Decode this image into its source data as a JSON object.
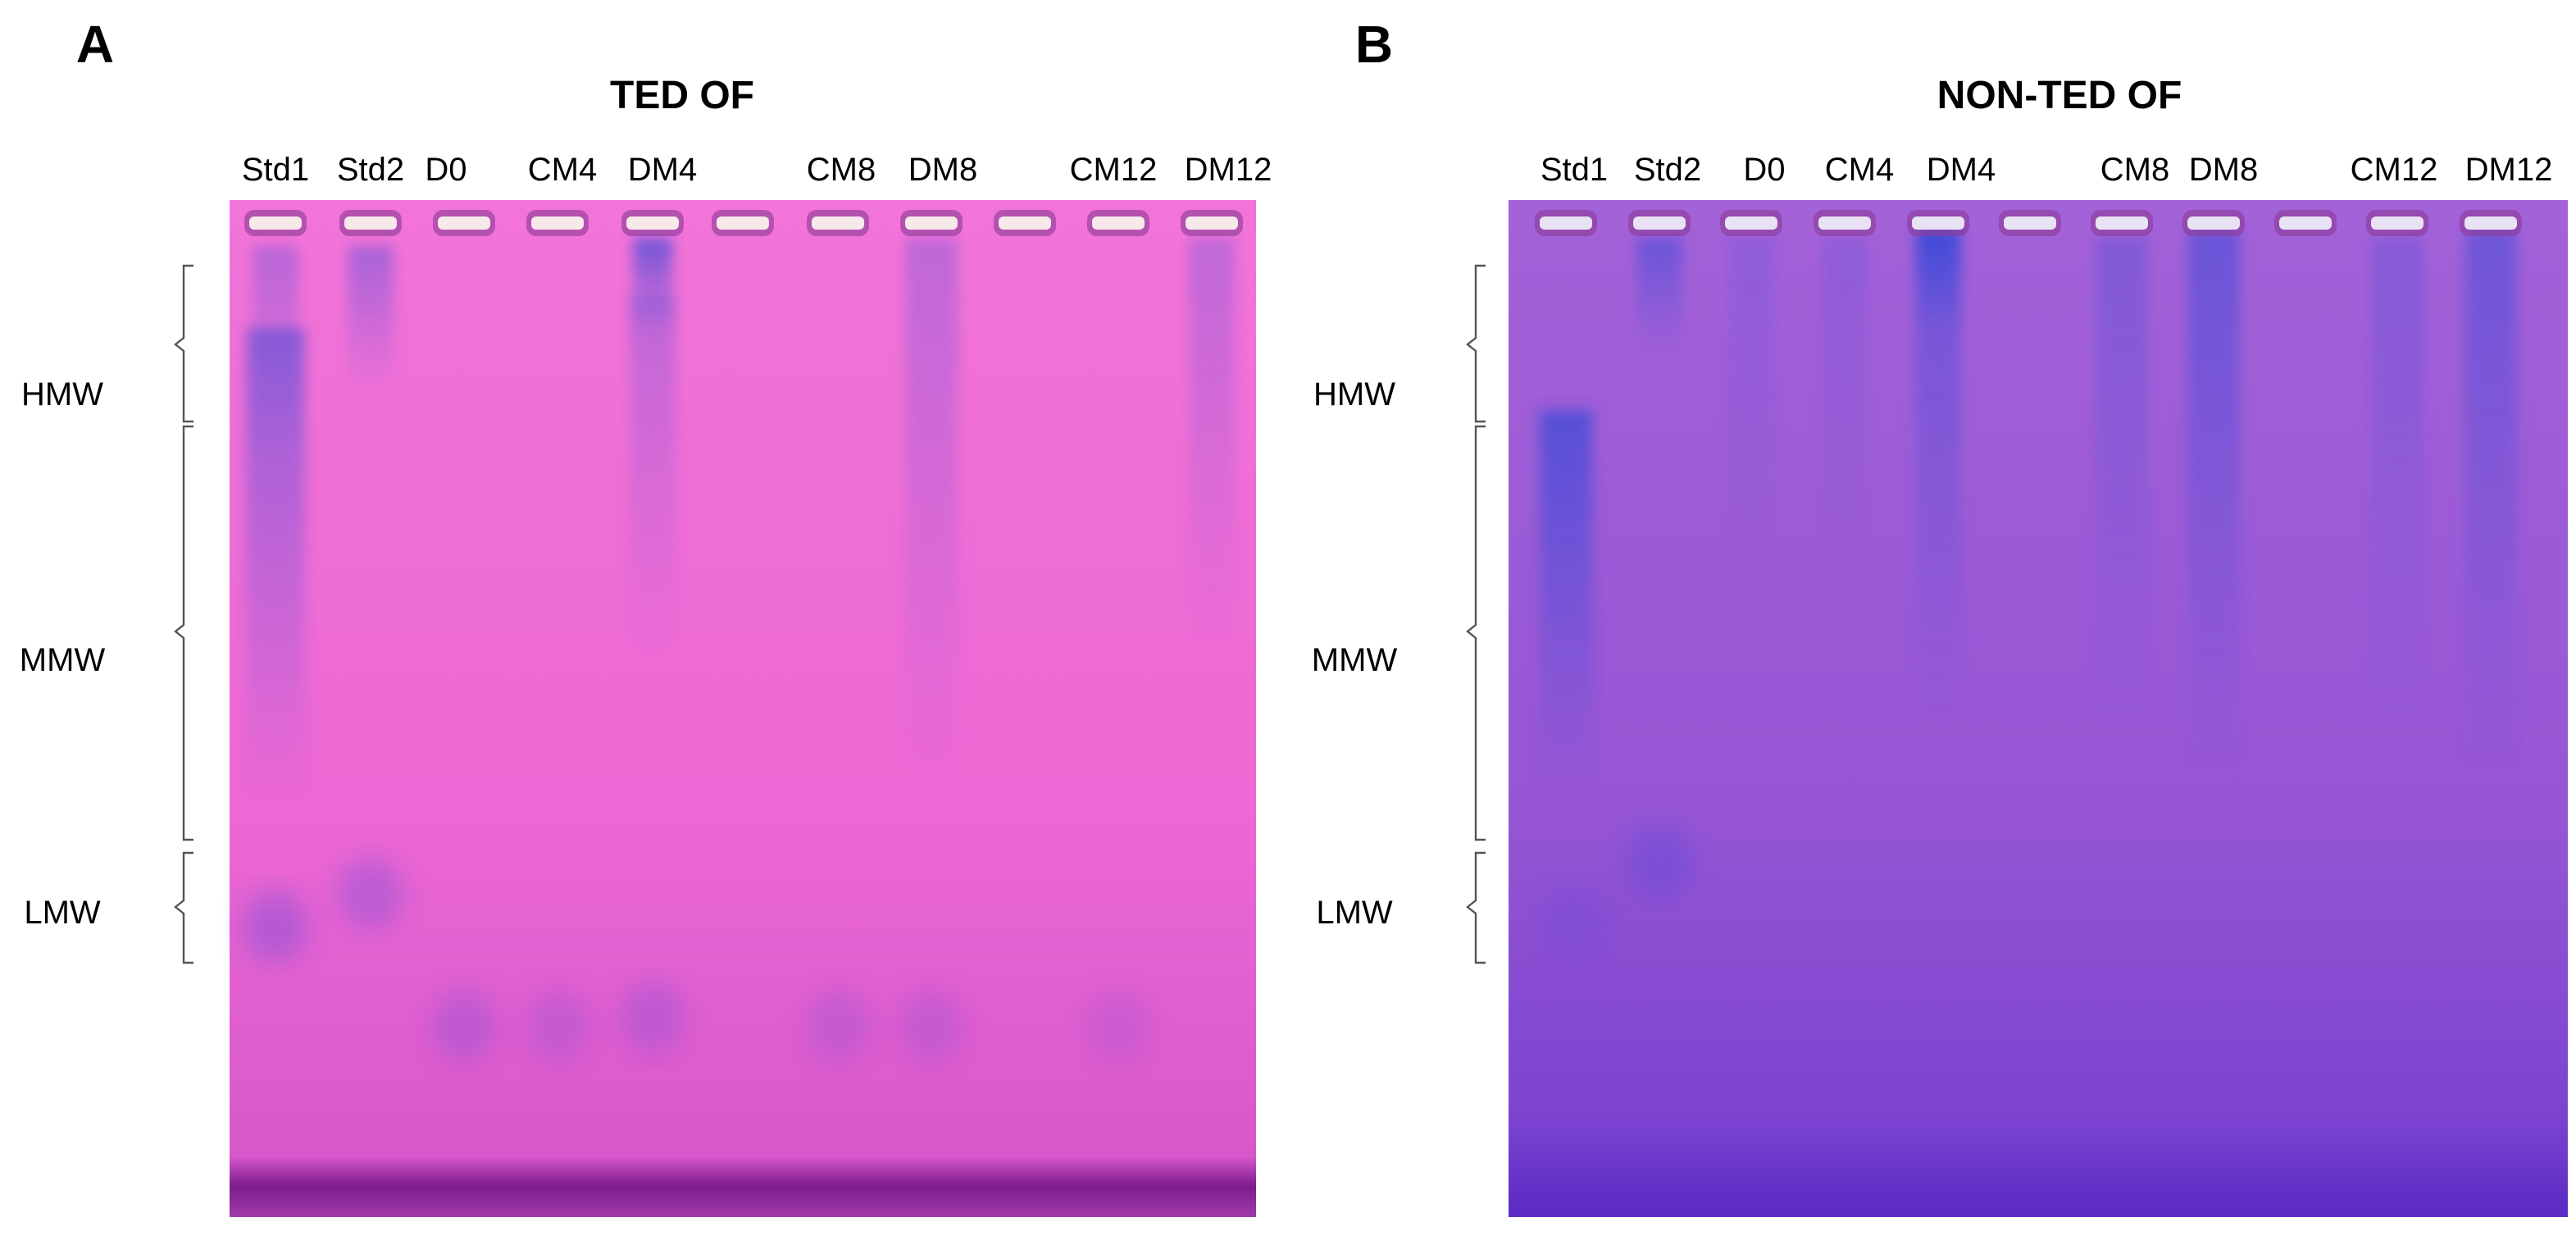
{
  "panels": [
    {
      "letter": "A",
      "title": "TED OF",
      "lanes": [
        "Std1",
        "Std2",
        "D0",
        "CM4",
        "DM4",
        "CM8",
        "DM8",
        "CM12",
        "DM12"
      ],
      "markers": [
        "HMW",
        "MMW",
        "LMW"
      ]
    },
    {
      "letter": "B",
      "title": "NON-TED OF",
      "lanes": [
        "Std1",
        "Std2",
        "D0",
        "CM4",
        "DM4",
        "CM8",
        "DM8",
        "CM12",
        "DM12"
      ],
      "markers": [
        "HMW",
        "MMW",
        "LMW"
      ]
    }
  ]
}
